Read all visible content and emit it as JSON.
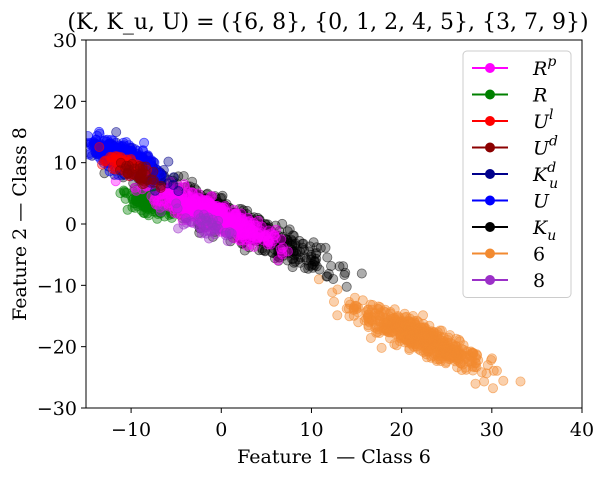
{
  "chart_data": {
    "type": "scatter",
    "title": "(K, K_u, U) = ({6, 8}, {0, 1, 2, 4, 5}, {3, 7, 9})",
    "xlabel": "Feature 1 — Class 6",
    "ylabel": "Feature 2 — Class 8",
    "xlim": [
      -15,
      40
    ],
    "ylim": [
      -30,
      30
    ],
    "xticks": [
      -10,
      0,
      10,
      20,
      30,
      40
    ],
    "yticks": [
      -30,
      -20,
      -10,
      0,
      10,
      20,
      30
    ],
    "xtick_labels": [
      "−10",
      "0",
      "10",
      "20",
      "30",
      "40"
    ],
    "ytick_labels": [
      "−30",
      "−20",
      "−10",
      "0",
      "10",
      "20",
      "30"
    ],
    "grid": false,
    "legend_position": "top-right",
    "series": [
      {
        "name": "R^p",
        "color": "#ff00ff",
        "cluster": {
          "center": [
            -1,
            1.5
          ],
          "dir_angle_deg": -34,
          "spread_major": 6,
          "spread_minor": 1.6,
          "count": 600
        }
      },
      {
        "name": "R",
        "color": "#008000",
        "cluster": {
          "center": [
            -7.5,
            3.5
          ],
          "dir_angle_deg": -30,
          "spread_major": 2.5,
          "spread_minor": 1.4,
          "count": 260
        }
      },
      {
        "name": "U^l",
        "color": "#ff0000",
        "cluster": {
          "center": [
            -11,
            10
          ],
          "dir_angle_deg": -35,
          "spread_major": 2,
          "spread_minor": 1.2,
          "count": 60
        }
      },
      {
        "name": "U^d",
        "color": "#8b0000",
        "cluster": {
          "center": [
            -9,
            8
          ],
          "dir_angle_deg": -35,
          "spread_major": 2,
          "spread_minor": 1.2,
          "count": 40
        }
      },
      {
        "name": "K_u^d",
        "color": "#00008b",
        "cluster": {
          "center": [
            -10,
            10
          ],
          "dir_angle_deg": -34,
          "spread_major": 3.5,
          "spread_minor": 1.5,
          "count": 260
        }
      },
      {
        "name": "U",
        "color": "#0000ff",
        "cluster": {
          "center": [
            -11,
            11
          ],
          "dir_angle_deg": -34,
          "spread_major": 3.5,
          "spread_minor": 1.5,
          "count": 300
        }
      },
      {
        "name": "K_u",
        "color": "#000000",
        "cluster": {
          "center": [
            2,
            0
          ],
          "dir_angle_deg": -36,
          "spread_major": 10,
          "spread_minor": 2,
          "count": 500
        }
      },
      {
        "name": "6",
        "color": "#f28a30",
        "cluster": {
          "center": [
            22,
            -18.5
          ],
          "dir_angle_deg": -36,
          "spread_major": 7,
          "spread_minor": 1.6,
          "count": 600
        }
      },
      {
        "name": "8",
        "color": "#9b30c8",
        "cluster": {
          "center": [
            -2,
            0
          ],
          "dir_angle_deg": -34,
          "spread_major": 3,
          "spread_minor": 1.2,
          "count": 40
        }
      }
    ]
  },
  "legend": {
    "items": [
      {
        "base": "R",
        "sup": "p",
        "sub": ""
      },
      {
        "base": "R",
        "sup": "",
        "sub": ""
      },
      {
        "base": "U",
        "sup": "l",
        "sub": ""
      },
      {
        "base": "U",
        "sup": "d",
        "sub": ""
      },
      {
        "base": "K",
        "sup": "d",
        "sub": "u"
      },
      {
        "base": "U",
        "sup": "",
        "sub": ""
      },
      {
        "base": "K",
        "sup": "",
        "sub": "u"
      },
      {
        "base": "6",
        "sup": "",
        "sub": ""
      },
      {
        "base": "8",
        "sup": "",
        "sub": ""
      }
    ]
  }
}
